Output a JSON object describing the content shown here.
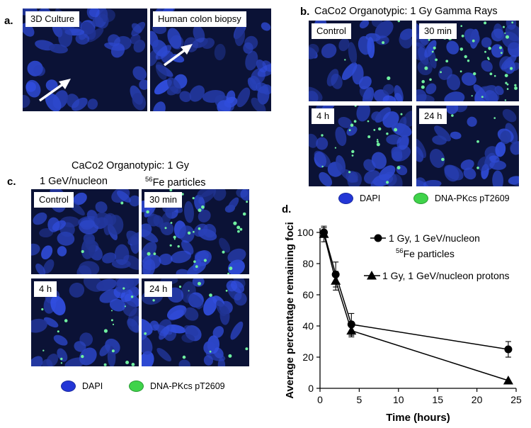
{
  "panel_a": {
    "letter": "a.",
    "images": [
      {
        "label": "3D Culture"
      },
      {
        "label": "Human colon biopsy"
      }
    ]
  },
  "panel_b": {
    "letter": "b.",
    "title": "CaCo2 Organotypic: 1 Gy Gamma Rays",
    "images": [
      {
        "label": "Control"
      },
      {
        "label": "30 min"
      },
      {
        "label": "4 h"
      },
      {
        "label": "24 h"
      }
    ],
    "legend": [
      {
        "label": "DAPI",
        "color": "#2336d6"
      },
      {
        "label": "DNA-PKcs pT2609",
        "color": "#3fd34a"
      }
    ]
  },
  "panel_c": {
    "letter": "c.",
    "title": "CaCo2 Organotypic: 1 Gy",
    "subtitle_left": "1 GeV/nucleon",
    "subtitle_right_sup": "56",
    "subtitle_right": "Fe particles",
    "images": [
      {
        "label": "Control"
      },
      {
        "label": "30 min"
      },
      {
        "label": "4 h"
      },
      {
        "label": "24 h"
      }
    ],
    "legend": [
      {
        "label": "DAPI",
        "color": "#2336d6"
      },
      {
        "label": "DNA-PKcs pT2609",
        "color": "#3fd34a"
      }
    ]
  },
  "panel_d": {
    "letter": "d."
  },
  "chart_data": {
    "type": "line",
    "xlabel": "Time (hours)",
    "ylabel": "Average percentage remaining foci",
    "xlim": [
      0,
      25
    ],
    "ylim": [
      0,
      100
    ],
    "xticks": [
      0,
      5,
      10,
      15,
      20,
      25
    ],
    "yticks": [
      0,
      20,
      40,
      60,
      80,
      100
    ],
    "grid": false,
    "legend_position": "top-right",
    "series": [
      {
        "name": "1 Gy, 1 GeV/nucleon",
        "name_line2_sup": "56",
        "name_line2": "Fe particles",
        "marker": "circle",
        "x": [
          0.5,
          2,
          4,
          24
        ],
        "y": [
          100,
          73,
          41,
          25
        ],
        "err": [
          3,
          8,
          7,
          5
        ]
      },
      {
        "name": "1 Gy, 1 GeV/nucleon protons",
        "marker": "triangle",
        "x": [
          0.5,
          2,
          4,
          24
        ],
        "y": [
          99,
          69,
          37,
          5
        ],
        "err": [
          5,
          6,
          4,
          0
        ]
      }
    ]
  }
}
